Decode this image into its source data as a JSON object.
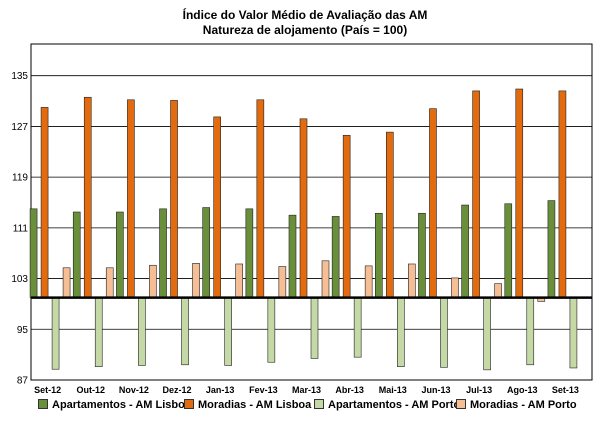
{
  "chart_data": {
    "type": "bar",
    "title": "Índice do Valor Médio de Avaliação das AM",
    "subtitle": "Natureza de alojamento (País = 100)",
    "categories": [
      "Set-12",
      "Out-12",
      "Nov-12",
      "Dez-12",
      "Jan-13",
      "Fev-13",
      "Mar-13",
      "Abr-13",
      "Mai-13",
      "Jun-13",
      "Jul-13",
      "Ago-13",
      "Set-13"
    ],
    "yticks": [
      87,
      95,
      103,
      111,
      119,
      127,
      135
    ],
    "ylim": [
      87,
      140
    ],
    "baseline": 100,
    "grid": true,
    "legend_position": "bottom",
    "series": [
      {
        "name": "Apartamentos - AM Lisboa",
        "color": "#6a8f3b",
        "values": [
          114,
          113.5,
          113.5,
          114,
          114.2,
          114,
          113,
          112.8,
          113.3,
          113.3,
          114.6,
          114.8,
          115.3
        ]
      },
      {
        "name": "Moradias - AM Lisboa",
        "color": "#e26b10",
        "values": [
          130,
          131.6,
          131.2,
          131.1,
          128.5,
          131.2,
          128.2,
          125.6,
          126.1,
          129.8,
          132.6,
          132.9,
          132.6
        ]
      },
      {
        "name": "Apartamentos - AM Porto",
        "color": "#c4d9a6",
        "values": [
          88.7,
          89.1,
          89.3,
          89.4,
          89.3,
          89.8,
          90.4,
          90.6,
          89.1,
          89,
          88.6,
          89.4,
          88.9
        ]
      },
      {
        "name": "Moradias - AM Porto",
        "color": "#f6be95",
        "values": [
          104.7,
          104.7,
          105.1,
          105.4,
          105.3,
          104.9,
          105.8,
          105,
          105.3,
          103.1,
          102.2,
          99.4,
          99.9
        ]
      }
    ]
  }
}
